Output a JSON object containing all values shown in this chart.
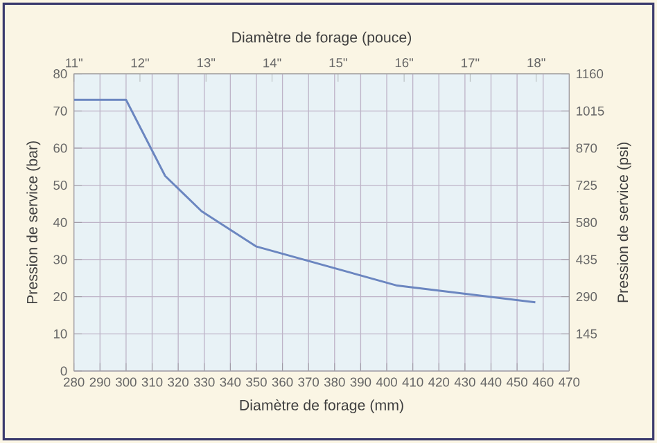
{
  "chart_data": {
    "type": "line",
    "xlabel": "Diamètre de forage (mm)",
    "x2label": "Diamètre de forage (pouce)",
    "ylabel": "Pression de service (bar)",
    "y2label": "Pression de service (psi)",
    "x": [
      280,
      300,
      315,
      329,
      350,
      404,
      457
    ],
    "values": [
      73,
      73,
      52.5,
      43,
      33.5,
      23,
      18.5
    ],
    "color": "#6b86c0",
    "marker": "none",
    "line_style": "solid",
    "grid": true,
    "xlim": [
      280,
      470
    ],
    "xticks": [
      280,
      290,
      300,
      310,
      320,
      330,
      340,
      350,
      360,
      370,
      380,
      390,
      400,
      410,
      420,
      430,
      440,
      450,
      460,
      470
    ],
    "x2lim": [
      11,
      18.5
    ],
    "x2ticks": [
      {
        "value": 11,
        "label": "11\""
      },
      {
        "value": 12,
        "label": "12\""
      },
      {
        "value": 13,
        "label": "13\""
      },
      {
        "value": 14,
        "label": "14\""
      },
      {
        "value": 15,
        "label": "15\""
      },
      {
        "value": 16,
        "label": "16\""
      },
      {
        "value": 17,
        "label": "17\""
      },
      {
        "value": 18,
        "label": "18\""
      }
    ],
    "ylim": [
      0,
      80
    ],
    "yticks": [
      0,
      10,
      20,
      30,
      40,
      50,
      60,
      70,
      80
    ],
    "y2lim": [
      0,
      1160
    ],
    "y2ticks": [
      145,
      290,
      435,
      580,
      725,
      870,
      1015,
      1160
    ]
  }
}
